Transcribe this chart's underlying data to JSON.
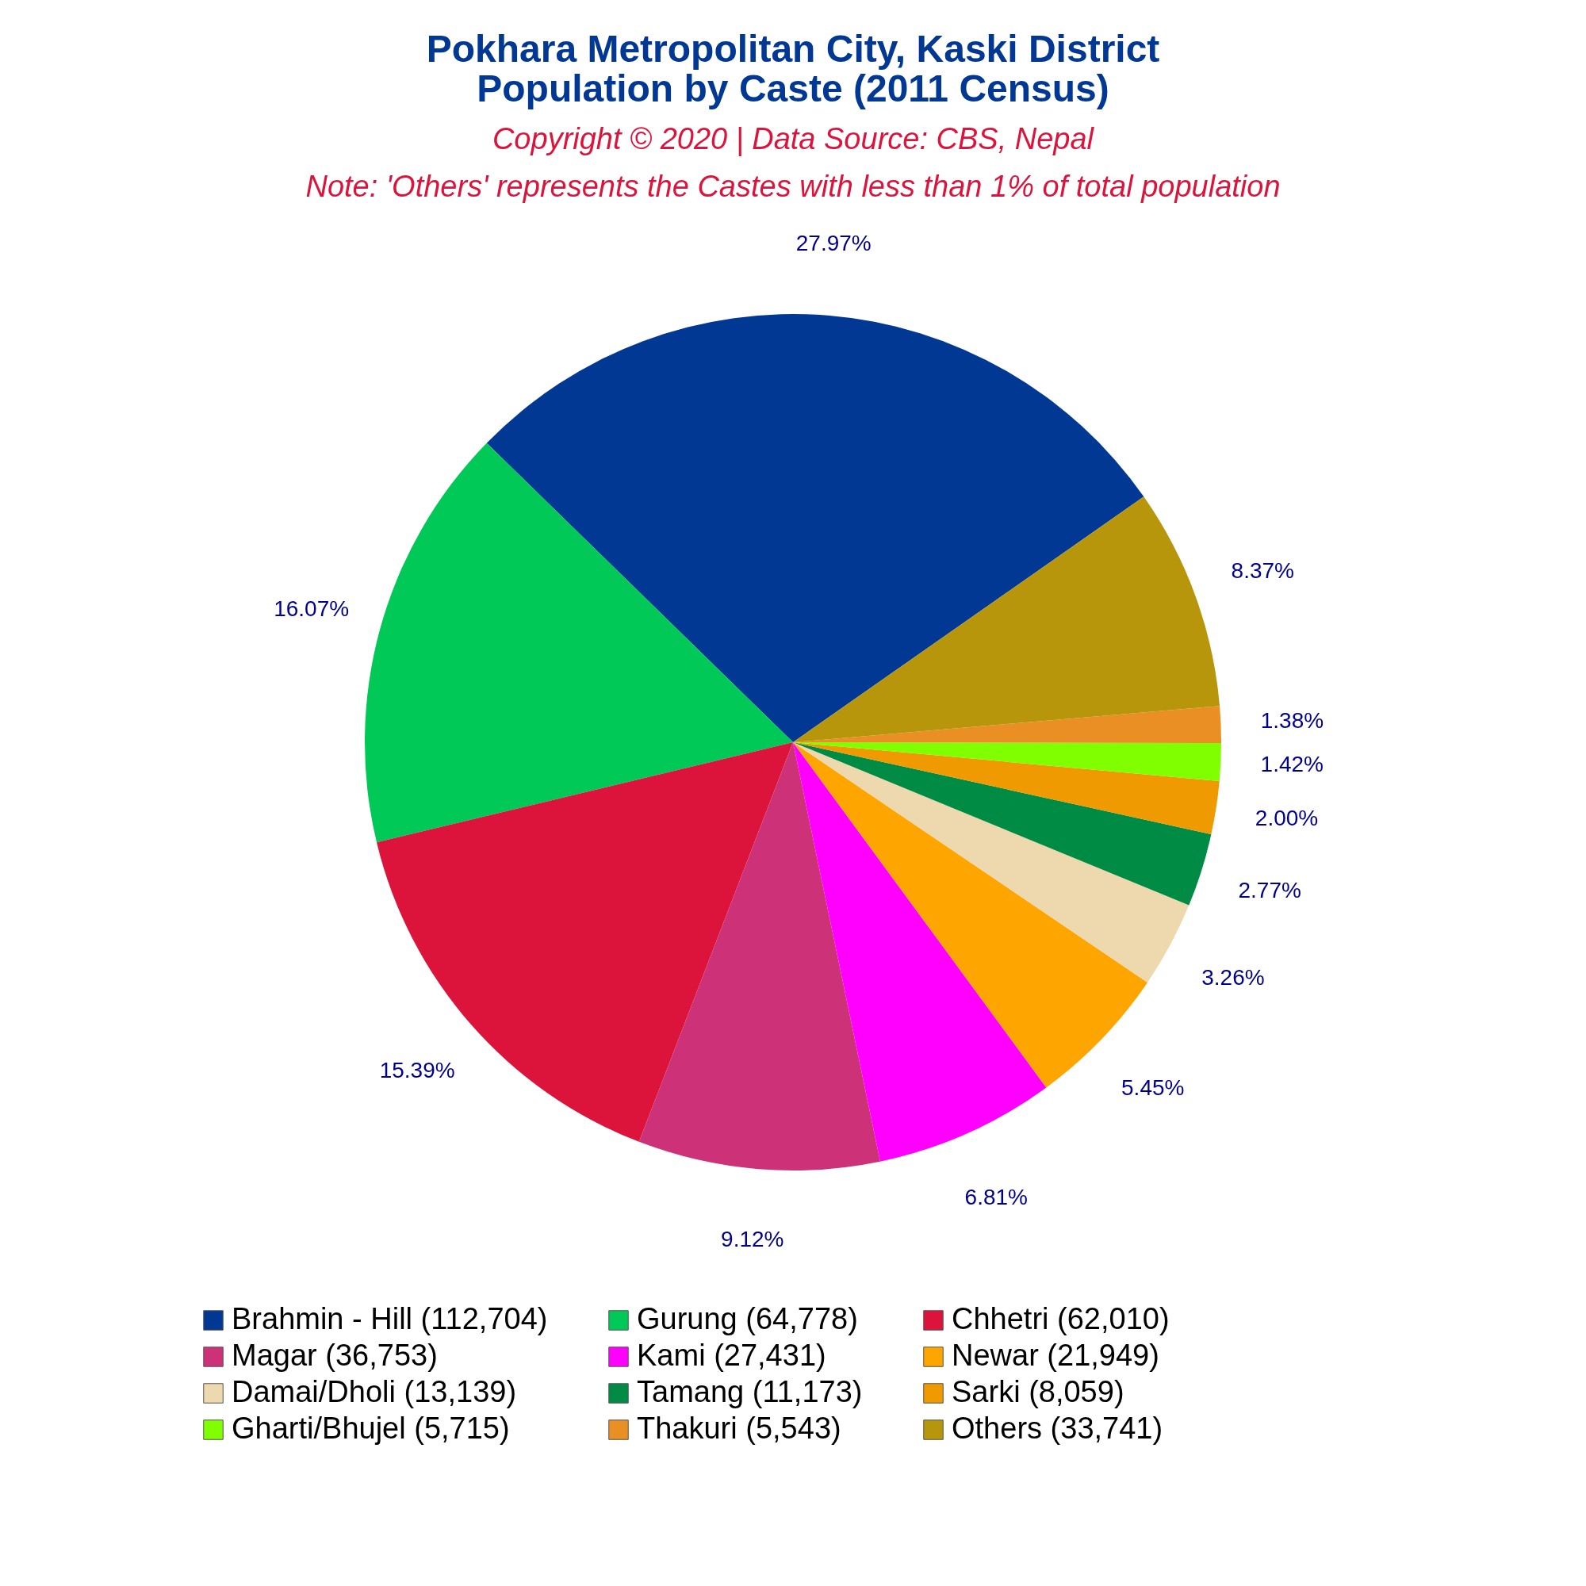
{
  "chart_data": {
    "type": "pie",
    "title": "Pokhara Metropolitan City, Kaski District\nPopulation by Caste (2011 Census)",
    "subtitle": "Copyright © 2020 | Data Source: CBS, Nepal",
    "annotations": [
      "Note: 'Others' represents the Castes with less than 1% of total population"
    ],
    "categories": [
      "Brahmin - Hill (112,704)",
      "Gurung (64,778)",
      "Chhetri (62,010)",
      "Magar (36,753)",
      "Kami (27,431)",
      "Newar (21,949)",
      "Damai/Dholi (13,139)",
      "Tamang (11,173)",
      "Sarki (8,059)",
      "Gharti/Bhujel (5,715)",
      "Thakuri (5,543)",
      "Others (33,741)"
    ],
    "values": [
      27.97,
      16.07,
      15.39,
      9.12,
      6.81,
      5.45,
      3.26,
      2.77,
      2.0,
      1.42,
      1.38,
      8.37
    ],
    "value_labels": [
      "27.97%",
      "16.07%",
      "15.39%",
      "9.12%",
      "6.81%",
      "5.45%",
      "3.26%",
      "2.77%",
      "2.00%",
      "1.42%",
      "1.38%",
      "8.37%"
    ],
    "colors": [
      "#003893",
      "#00c957",
      "#dc143c",
      "#cd3278",
      "#ff00ff",
      "#ffa500",
      "#eed8ae",
      "#008b45",
      "#ee9a00",
      "#7fff00",
      "#ea8f24",
      "#b8960b"
    ],
    "legend": "bottom"
  }
}
